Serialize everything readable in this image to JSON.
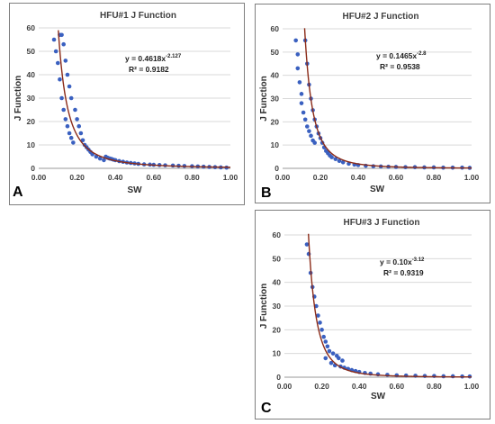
{
  "chart_data": [
    {
      "type": "scatter",
      "panel_label": "A",
      "title": "HFU#1 J Function",
      "xlabel": "SW",
      "ylabel": "J Function",
      "xlim": [
        0.0,
        1.0
      ],
      "ylim": [
        0,
        60
      ],
      "x_ticks": [
        "0.00",
        "0.20",
        "0.40",
        "0.60",
        "0.80",
        "1.00"
      ],
      "y_ticks": [
        "0",
        "10",
        "20",
        "30",
        "40",
        "50",
        "60"
      ],
      "grid": "horizontal",
      "point_color": "#3a60c0",
      "curve_color": "#8b2b18",
      "fit": {
        "a": 0.4618,
        "b": -2.127
      },
      "equation_base": "y = 0.4618x",
      "equation_exp": "-2.127",
      "r2_label": "R² = 0.9182",
      "series": [
        {
          "x": [
            0.08,
            0.09,
            0.1,
            0.11,
            0.11,
            0.12,
            0.12,
            0.13,
            0.13,
            0.14,
            0.14,
            0.15,
            0.15,
            0.16,
            0.16,
            0.17,
            0.17,
            0.18,
            0.19,
            0.2,
            0.21,
            0.22,
            0.23,
            0.24,
            0.25,
            0.26,
            0.27,
            0.28,
            0.3,
            0.32,
            0.34,
            0.35,
            0.36,
            0.37,
            0.38,
            0.39,
            0.4,
            0.42,
            0.44,
            0.46,
            0.48,
            0.5,
            0.52,
            0.55,
            0.58,
            0.6,
            0.63,
            0.66,
            0.7,
            0.73,
            0.76,
            0.8,
            0.83,
            0.86,
            0.89,
            0.92,
            0.95,
            0.98
          ],
          "y": [
            55,
            50,
            45,
            38,
            57,
            30,
            57,
            25,
            53,
            21,
            46,
            18,
            40,
            15,
            35,
            13,
            30,
            11,
            25,
            21,
            18,
            15,
            12,
            10,
            9,
            8,
            7,
            6,
            5,
            4.2,
            3.5,
            5,
            4.5,
            4.2,
            4,
            3.7,
            3.5,
            3.1,
            2.8,
            2.5,
            2.3,
            2.1,
            1.9,
            1.7,
            1.6,
            1.5,
            1.4,
            1.3,
            1.2,
            1.1,
            1.0,
            0.9,
            0.8,
            0.7,
            0.6,
            0.5,
            0.4,
            0.3
          ]
        }
      ]
    },
    {
      "type": "scatter",
      "panel_label": "B",
      "title": "HFU#2 J Function",
      "xlabel": "SW",
      "ylabel": "J Function",
      "xlim": [
        0.0,
        1.0
      ],
      "ylim": [
        0,
        60
      ],
      "x_ticks": [
        "0.00",
        "0.20",
        "0.40",
        "0.60",
        "0.80",
        "1.00"
      ],
      "y_ticks": [
        "0",
        "10",
        "20",
        "30",
        "40",
        "50",
        "60"
      ],
      "grid": "horizontal",
      "point_color": "#3a60c0",
      "curve_color": "#8b2b18",
      "fit": {
        "a": 0.1465,
        "b": -2.8
      },
      "equation_base": "y = 0.1465x",
      "equation_exp": "-2.8",
      "r2_label": "R² = 0.9538",
      "series": [
        {
          "x": [
            0.07,
            0.08,
            0.08,
            0.09,
            0.1,
            0.1,
            0.11,
            0.12,
            0.12,
            0.13,
            0.13,
            0.14,
            0.14,
            0.15,
            0.15,
            0.16,
            0.16,
            0.17,
            0.17,
            0.18,
            0.19,
            0.2,
            0.21,
            0.22,
            0.23,
            0.24,
            0.25,
            0.26,
            0.28,
            0.3,
            0.32,
            0.35,
            0.38,
            0.4,
            0.44,
            0.48,
            0.52,
            0.56,
            0.6,
            0.65,
            0.7,
            0.75,
            0.8,
            0.85,
            0.9,
            0.95,
            0.99
          ],
          "y": [
            55,
            49,
            43,
            37,
            32,
            28,
            24,
            21,
            55,
            18,
            45,
            16,
            36,
            14,
            30,
            12,
            25,
            11,
            21,
            18,
            15,
            13,
            11,
            9,
            7.5,
            6.5,
            5.5,
            4.8,
            4,
            3.2,
            2.6,
            2,
            1.6,
            1.4,
            1.1,
            0.9,
            0.8,
            0.7,
            0.6,
            0.5,
            0.5,
            0.4,
            0.4,
            0.3,
            0.3,
            0.3,
            0.2
          ]
        }
      ]
    },
    {
      "type": "scatter",
      "panel_label": "C",
      "title": "HFU#3 J Function",
      "xlabel": "SW",
      "ylabel": "J Function",
      "xlim": [
        0.0,
        1.0
      ],
      "ylim": [
        0,
        60
      ],
      "x_ticks": [
        "0.00",
        "0.20",
        "0.40",
        "0.60",
        "0.80",
        "1.00"
      ],
      "y_ticks": [
        "0",
        "10",
        "20",
        "30",
        "40",
        "50",
        "60"
      ],
      "grid": "horizontal",
      "point_color": "#3a60c0",
      "curve_color": "#8b2b18",
      "fit": {
        "a": 0.1,
        "b": -3.12
      },
      "equation_base": "y = 0.10x",
      "equation_exp": "-3.12",
      "r2_label": "R² = 0.9319",
      "series": [
        {
          "x": [
            0.12,
            0.13,
            0.14,
            0.15,
            0.16,
            0.17,
            0.18,
            0.19,
            0.2,
            0.21,
            0.22,
            0.22,
            0.23,
            0.24,
            0.25,
            0.26,
            0.27,
            0.28,
            0.29,
            0.3,
            0.31,
            0.32,
            0.34,
            0.36,
            0.38,
            0.4,
            0.43,
            0.46,
            0.5,
            0.55,
            0.6,
            0.65,
            0.7,
            0.75,
            0.8,
            0.85,
            0.9,
            0.95,
            0.99
          ],
          "y": [
            56,
            52,
            44,
            38,
            34,
            30,
            26,
            23,
            20,
            17,
            15,
            8,
            13,
            11,
            6,
            10,
            5,
            9,
            8,
            4.5,
            7,
            4,
            3.5,
            3,
            2.6,
            2.2,
            1.8,
            1.5,
            1.2,
            1,
            0.8,
            0.7,
            0.6,
            0.5,
            0.5,
            0.4,
            0.4,
            0.3,
            0.3
          ]
        }
      ]
    }
  ]
}
